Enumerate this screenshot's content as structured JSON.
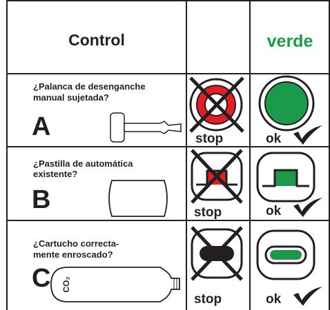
{
  "header": {
    "title": "Control",
    "status": "verde"
  },
  "rows": [
    {
      "question_lines": [
        "¿Palanca de desenganche",
        "manual sujetada?"
      ],
      "letter": "A",
      "stop": "stop",
      "ok": "ok"
    },
    {
      "question_lines": [
        "¿Pastilla de automática",
        "existente?"
      ],
      "letter": "B",
      "stop": "stop",
      "ok": "ok"
    },
    {
      "question_lines": [
        "¿Cartucho correcta-",
        "mente enroscado?"
      ],
      "letter": "C",
      "stop": "stop",
      "ok": "ok"
    }
  ],
  "cartridge_label": "CO₂"
}
